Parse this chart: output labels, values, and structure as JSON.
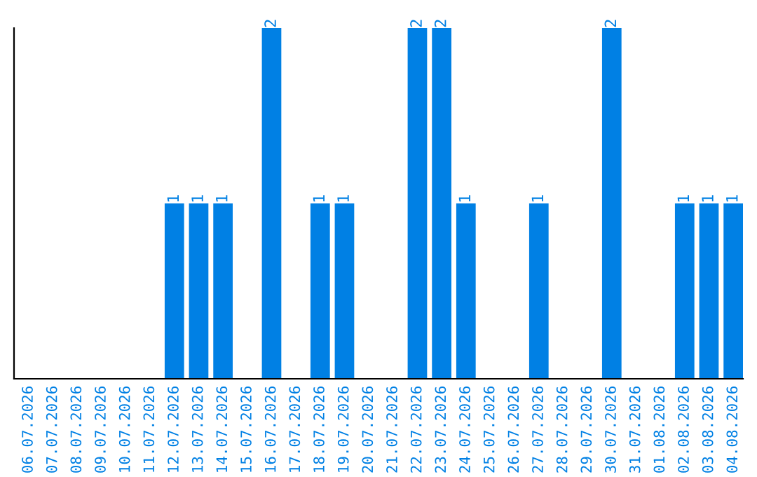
{
  "chart_data": {
    "type": "bar",
    "categories": [
      "06.07.2026",
      "07.07.2026",
      "08.07.2026",
      "09.07.2026",
      "10.07.2026",
      "11.07.2026",
      "12.07.2026",
      "13.07.2026",
      "14.07.2026",
      "15.07.2026",
      "16.07.2026",
      "17.07.2026",
      "18.07.2026",
      "19.07.2026",
      "20.07.2026",
      "21.07.2026",
      "22.07.2026",
      "23.07.2026",
      "24.07.2026",
      "25.07.2026",
      "26.07.2026",
      "27.07.2026",
      "28.07.2026",
      "29.07.2026",
      "30.07.2026",
      "31.07.2026",
      "01.08.2026",
      "02.08.2026",
      "03.08.2026",
      "04.08.2026"
    ],
    "values": [
      0,
      0,
      0,
      0,
      0,
      0,
      1,
      1,
      1,
      0,
      2,
      0,
      1,
      1,
      0,
      0,
      2,
      2,
      1,
      0,
      0,
      1,
      0,
      0,
      2,
      0,
      0,
      1,
      1,
      1
    ],
    "value_labels": [
      null,
      null,
      null,
      null,
      null,
      null,
      "1",
      "1",
      "1",
      null,
      "2",
      null,
      "1",
      "1",
      null,
      null,
      "2",
      "2",
      "1",
      null,
      null,
      "1",
      null,
      null,
      "2",
      null,
      null,
      "1",
      "1",
      "1"
    ],
    "color": "#0080e4",
    "ylim": [
      0,
      2
    ],
    "tick_labels": "x",
    "grid": false,
    "legend": false
  }
}
